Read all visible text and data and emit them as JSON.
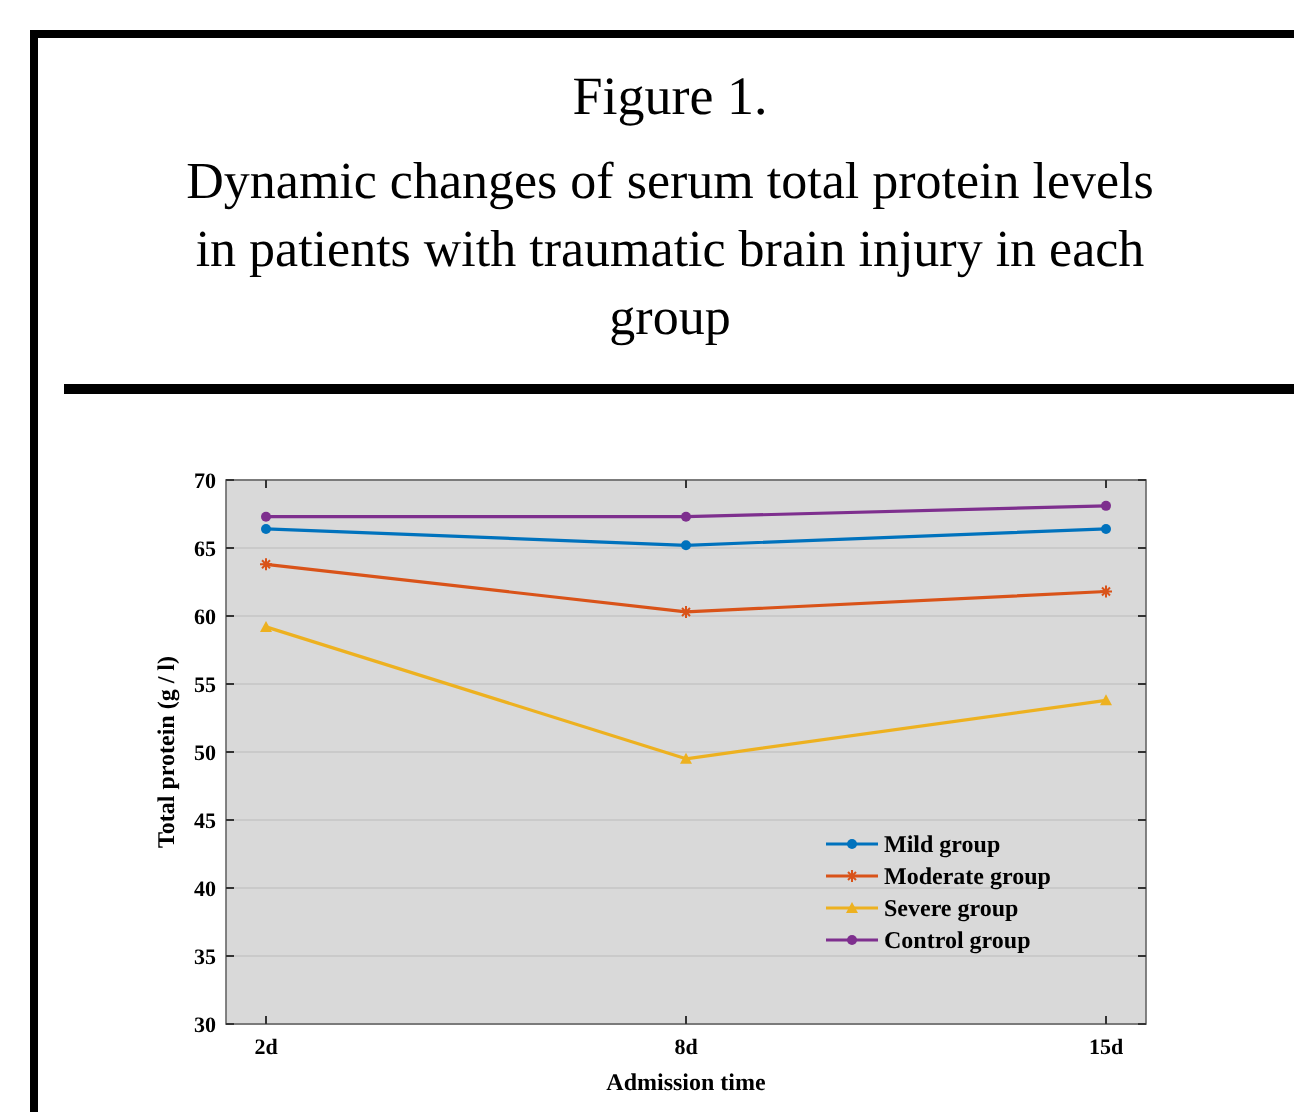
{
  "chart_data": {
    "type": "line",
    "title": "Figure 1.",
    "subtitle": "Dynamic changes of serum total protein levels in patients with traumatic brain injury in each group",
    "xlabel": "Admission time",
    "ylabel": "Total protein (g / l)",
    "categories": [
      "2d",
      "8d",
      "15d"
    ],
    "ylim": [
      30,
      70
    ],
    "yticks": [
      30,
      35,
      40,
      45,
      50,
      55,
      60,
      65,
      70
    ],
    "grid": "y",
    "legend": "bottom right",
    "series": [
      {
        "name": "Mild group",
        "color": "#0072bd",
        "marker": "circle",
        "values": [
          66.4,
          65.2,
          66.4
        ]
      },
      {
        "name": "Moderate group",
        "color": "#d95319",
        "marker": "cross",
        "values": [
          63.8,
          60.3,
          61.8
        ]
      },
      {
        "name": "Severe group",
        "color": "#edb120",
        "marker": "triangle",
        "values": [
          59.2,
          49.5,
          53.8
        ]
      },
      {
        "name": "Control group",
        "color": "#7e2f8e",
        "marker": "circle",
        "values": [
          67.3,
          67.3,
          68.1
        ]
      }
    ]
  }
}
